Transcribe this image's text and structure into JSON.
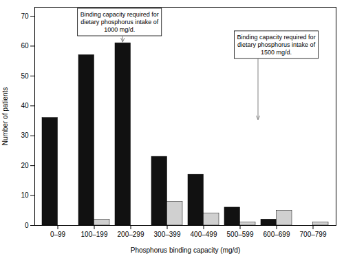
{
  "chart_data": {
    "type": "bar",
    "categories": [
      "0–99",
      "100–199",
      "200–299",
      "300–399",
      "400–499",
      "500–599",
      "600–699",
      "700–799"
    ],
    "series": [
      {
        "color": "#111111",
        "values": [
          36,
          57,
          61,
          23,
          17,
          6,
          2,
          0
        ]
      },
      {
        "color": "#d0d0d0",
        "values": [
          0,
          2,
          0,
          8,
          4,
          1,
          5,
          1
        ]
      }
    ],
    "xlabel": "Phosphorus binding capacity (mg/d)",
    "ylabel": "Number of patients",
    "ylim": [
      0,
      73
    ],
    "yticks": [
      0,
      10,
      20,
      30,
      40,
      50,
      60,
      70
    ],
    "annotations": [
      "Binding capacity required for\ndietary phosphorus intake of\n1000 mg/d.",
      "Binding capacity required for\ndietary phosphorus intake of\n1500 mg/d."
    ]
  }
}
